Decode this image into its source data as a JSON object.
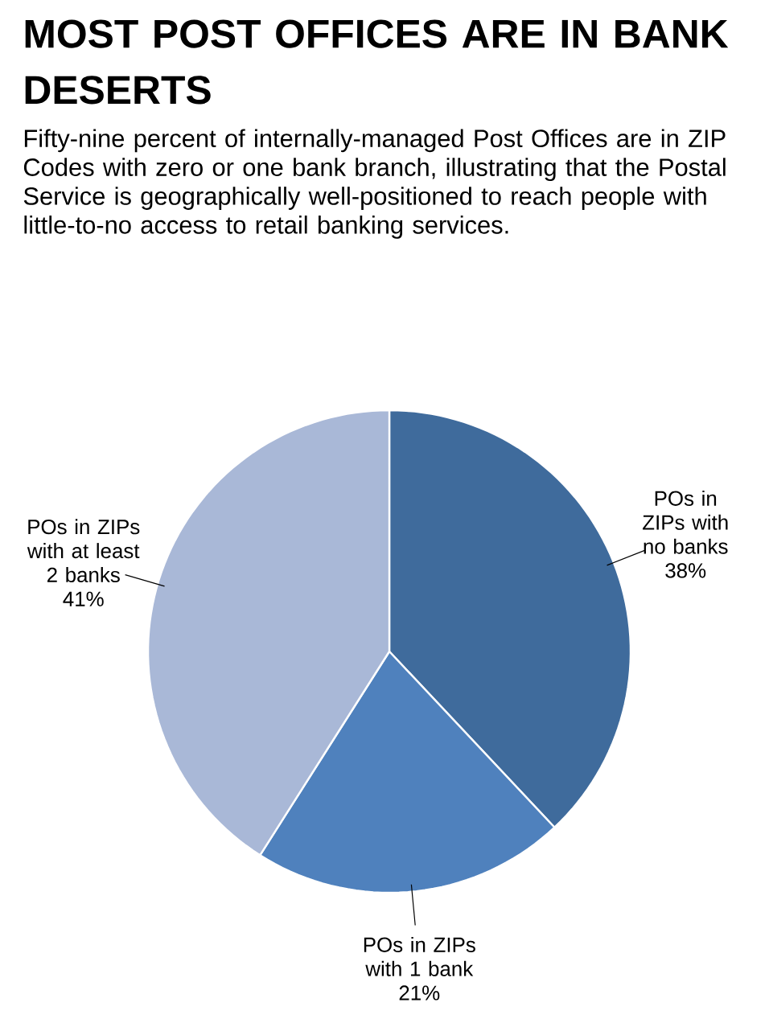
{
  "chart_data": {
    "type": "pie",
    "title": "MOST POST OFFICES ARE IN BANK DESERTS",
    "subtitle": "Fifty-nine percent of internally-managed Post Offices are in ZIP Codes with zero or one bank branch, illustrating that the Postal Service is geographically well-positioned to reach people with little-to-no access to retail banking services.",
    "categories": [
      "POs in ZIPs with no banks",
      "POs in ZIPs with 1 bank",
      "POs in ZIPs with at least 2 banks"
    ],
    "values": [
      38,
      21,
      41
    ],
    "value_labels": [
      "38%",
      "21%",
      "41%"
    ],
    "colors": [
      "#3f6b9c",
      "#4f81bd",
      "#a9b8d7"
    ]
  }
}
